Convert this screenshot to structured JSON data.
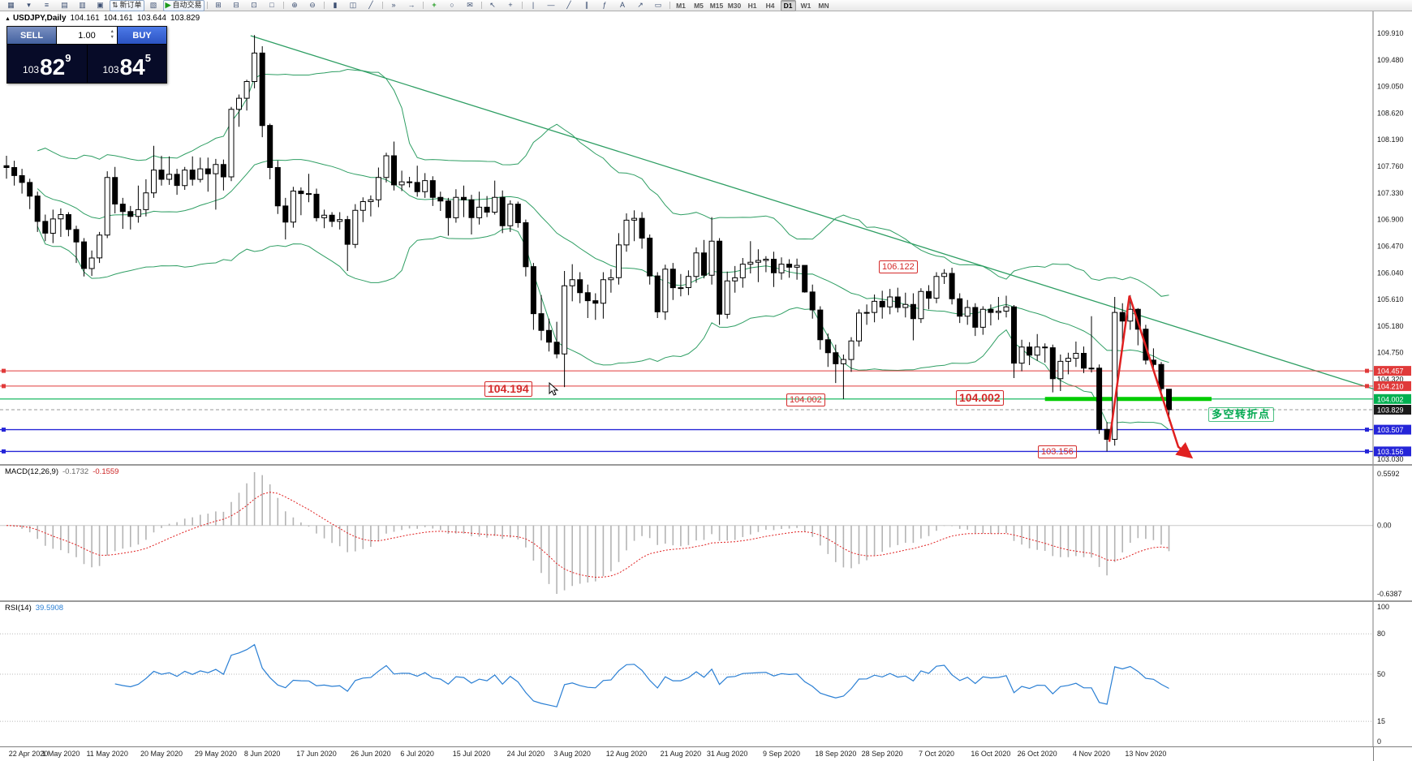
{
  "toolbar": {
    "items": [
      {
        "name": "new-chart-icon"
      },
      {
        "name": "chart-dropdown-icon"
      },
      {
        "name": "market-watch-icon"
      },
      {
        "name": "data-window-icon"
      },
      {
        "name": "navigator-icon"
      },
      {
        "name": "terminal-icon"
      },
      {
        "name": "new-order-button",
        "label": "新订单",
        "icon": "order-icon"
      },
      {
        "name": "strategy-tester-icon"
      },
      {
        "name": "autotrading-button",
        "label": "自动交易",
        "icon": "play-icon"
      },
      {
        "sep": true
      },
      {
        "name": "tile-windows-icon"
      },
      {
        "name": "cascade-windows-icon"
      },
      {
        "name": "arrange-icon"
      },
      {
        "name": "maximize-icon"
      },
      {
        "sep": true
      },
      {
        "name": "zoom-in-icon"
      },
      {
        "name": "zoom-out-icon"
      },
      {
        "sep": true
      },
      {
        "name": "bar-chart-icon"
      },
      {
        "name": "candlestick-chart-icon"
      },
      {
        "name": "line-chart-icon"
      },
      {
        "sep": true
      },
      {
        "name": "auto-scroll-icon"
      },
      {
        "name": "chart-shift-icon"
      },
      {
        "sep": true
      },
      {
        "name": "indicators-icon"
      },
      {
        "name": "periods-icon"
      },
      {
        "name": "templates-icon"
      },
      {
        "sep": true
      },
      {
        "name": "cursor-icon"
      },
      {
        "name": "crosshair-icon"
      },
      {
        "sep": true
      },
      {
        "name": "vertical-line-icon"
      },
      {
        "name": "horizontal-line-icon"
      },
      {
        "name": "trendline-icon"
      },
      {
        "name": "channel-icon"
      },
      {
        "name": "fibonacci-icon"
      },
      {
        "name": "text-icon"
      },
      {
        "name": "arrow-label-icon"
      },
      {
        "name": "shapes-icon"
      },
      {
        "sep": true
      }
    ],
    "timeframes": [
      "M1",
      "M5",
      "M15",
      "M30",
      "H1",
      "H4",
      "D1",
      "W1",
      "MN"
    ],
    "active_timeframe": "D1"
  },
  "chart_title": {
    "symbol": "USDJPY,Daily",
    "open": "104.161",
    "high": "104.161",
    "low": "103.644",
    "close": "103.829"
  },
  "trade_panel": {
    "sell_label": "SELL",
    "buy_label": "BUY",
    "volume": "1.00",
    "bid_small": "103",
    "bid_big": "82",
    "bid_sup": "9",
    "ask_small": "103",
    "ask_big": "84",
    "ask_sup": "5"
  },
  "price_axis": {
    "ticks": [
      "109.910",
      "109.480",
      "109.050",
      "108.620",
      "108.190",
      "107.760",
      "107.330",
      "106.900",
      "106.470",
      "106.040",
      "105.610",
      "105.180",
      "104.750",
      "104.320",
      "103.030"
    ],
    "badges": [
      {
        "label": "104.457",
        "color": "#e03a3a"
      },
      {
        "label": "104.210",
        "color": "#e03a3a"
      },
      {
        "label": "104.002",
        "color": "#00b050"
      },
      {
        "label": "103.829",
        "color": "#1a1a1a"
      },
      {
        "label": "103.507",
        "color": "#2525d8"
      },
      {
        "label": "103.156",
        "color": "#2525d8"
      }
    ]
  },
  "levels": [
    {
      "name": "resistance-line-104457",
      "price": 104.457,
      "color": "#e03a3a",
      "width": 1,
      "marker": true
    },
    {
      "name": "resistance-line-104210",
      "price": 104.21,
      "color": "#e03a3a",
      "width": 1,
      "marker": true
    },
    {
      "name": "support-line-104002",
      "price": 104.002,
      "color": "#00b050",
      "width": 1.2,
      "marker": false
    },
    {
      "name": "bid-price-line",
      "price": 103.829,
      "color": "#9a9a9a",
      "width": 1,
      "dash": true,
      "marker": false
    },
    {
      "name": "support-line-103507",
      "price": 103.507,
      "color": "#2525d8",
      "width": 1.4,
      "marker": true
    },
    {
      "name": "support-line-103156",
      "price": 103.156,
      "color": "#2525d8",
      "width": 1.4,
      "marker": true
    }
  ],
  "annotations": {
    "peak_level": "106.122",
    "july_low": "104.194",
    "sep_low": "104.002",
    "key_level": "104.002",
    "nov_low": "103.156",
    "pivot_text": "多空转折点"
  },
  "macd": {
    "label": "MACD(12,26,9)",
    "value1": "-0.1732",
    "value2": "-0.1559",
    "scale_max": "0.5592",
    "scale_zero": "0.00",
    "scale_min": "-0.6387",
    "fast": 12,
    "slow": 26,
    "signal": 9
  },
  "rsi": {
    "label": "RSI(14)",
    "value": "39.5908",
    "period": 14,
    "scale_labels": [
      "100",
      "80",
      "50",
      "15",
      "0"
    ],
    "level_lines": [
      80,
      50,
      15
    ]
  },
  "chart_data": {
    "type": "candlestick",
    "symbol": "USDJPY",
    "timeframe": "Daily",
    "bollinger": {
      "period": 20,
      "deviation": 2
    },
    "trendline": {
      "i1": 31.5,
      "p1": 109.87,
      "i2": 177,
      "p2": 104.14
    },
    "green_segment": {
      "price": 104.002,
      "from_i": 134,
      "to_i": 155.5
    },
    "arrow_points": [
      [
        142.3,
        103.31
      ],
      [
        144.9,
        105.67
      ],
      [
        151.2,
        103.23
      ],
      [
        152.9,
        103.06
      ]
    ],
    "x_labels": [
      {
        "i": 0,
        "label": "22 Apr 2020"
      },
      {
        "i": 7,
        "label": "1 May 2020"
      },
      {
        "i": 13,
        "label": "11 May 2020"
      },
      {
        "i": 20,
        "label": "20 May 2020"
      },
      {
        "i": 27,
        "label": "29 May 2020"
      },
      {
        "i": 33,
        "label": "8 Jun 2020"
      },
      {
        "i": 40,
        "label": "17 Jun 2020"
      },
      {
        "i": 47,
        "label": "26 Jun 2020"
      },
      {
        "i": 53,
        "label": "6 Jul 2020"
      },
      {
        "i": 60,
        "label": "15 Jul 2020"
      },
      {
        "i": 67,
        "label": "24 Jul 2020"
      },
      {
        "i": 73,
        "label": "3 Aug 2020"
      },
      {
        "i": 80,
        "label": "12 Aug 2020"
      },
      {
        "i": 87,
        "label": "21 Aug 2020"
      },
      {
        "i": 93,
        "label": "31 Aug 2020"
      },
      {
        "i": 100,
        "label": "9 Sep 2020"
      },
      {
        "i": 107,
        "label": "18 Sep 2020"
      },
      {
        "i": 113,
        "label": "28 Sep 2020"
      },
      {
        "i": 120,
        "label": "7 Oct 2020"
      },
      {
        "i": 127,
        "label": "16 Oct 2020"
      },
      {
        "i": 133,
        "label": "26 Oct 2020"
      },
      {
        "i": 140,
        "label": "4 Nov 2020"
      },
      {
        "i": 147,
        "label": "13 Nov 2020"
      }
    ],
    "candles": [
      [
        107.77,
        107.93,
        107.56,
        107.74
      ],
      [
        107.74,
        107.85,
        107.45,
        107.61
      ],
      [
        107.61,
        107.72,
        107.32,
        107.5
      ],
      [
        107.5,
        107.56,
        107.07,
        107.28
      ],
      [
        107.28,
        107.35,
        106.7,
        106.87
      ],
      [
        106.87,
        106.98,
        106.55,
        106.68
      ],
      [
        106.68,
        107.06,
        106.52,
        106.91
      ],
      [
        106.91,
        107.08,
        106.62,
        106.98
      ],
      [
        106.98,
        107.02,
        106.63,
        106.74
      ],
      [
        106.74,
        106.8,
        106.2,
        106.54
      ],
      [
        106.54,
        106.6,
        105.98,
        106.11
      ],
      [
        106.11,
        106.4,
        105.99,
        106.28
      ],
      [
        106.28,
        106.7,
        106.2,
        106.65
      ],
      [
        106.65,
        107.68,
        106.6,
        107.58
      ],
      [
        107.58,
        107.75,
        107.0,
        107.15
      ],
      [
        107.15,
        107.25,
        106.75,
        107.03
      ],
      [
        107.03,
        107.12,
        106.74,
        106.95
      ],
      [
        106.95,
        107.45,
        106.85,
        107.06
      ],
      [
        107.06,
        107.55,
        106.95,
        107.33
      ],
      [
        107.33,
        108.09,
        107.25,
        107.7
      ],
      [
        107.7,
        107.93,
        107.45,
        107.55
      ],
      [
        107.55,
        107.92,
        107.46,
        107.63
      ],
      [
        107.63,
        107.72,
        107.3,
        107.45
      ],
      [
        107.45,
        107.75,
        107.38,
        107.7
      ],
      [
        107.7,
        107.92,
        107.45,
        107.55
      ],
      [
        107.55,
        107.9,
        107.5,
        107.72
      ],
      [
        107.72,
        107.9,
        107.35,
        107.64
      ],
      [
        107.64,
        107.88,
        107.06,
        107.79
      ],
      [
        107.79,
        107.87,
        107.37,
        107.59
      ],
      [
        107.59,
        108.72,
        107.52,
        108.68
      ],
      [
        108.68,
        108.92,
        108.4,
        108.86
      ],
      [
        108.86,
        109.16,
        108.66,
        109.13
      ],
      [
        109.13,
        109.88,
        109.02,
        109.59
      ],
      [
        109.59,
        109.7,
        108.23,
        108.42
      ],
      [
        108.42,
        108.45,
        107.55,
        107.74
      ],
      [
        107.74,
        107.85,
        106.99,
        107.12
      ],
      [
        107.12,
        107.25,
        106.58,
        106.86
      ],
      [
        106.86,
        107.43,
        106.77,
        107.36
      ],
      [
        107.36,
        107.42,
        106.97,
        107.32
      ],
      [
        107.32,
        107.64,
        107.18,
        107.31
      ],
      [
        107.31,
        107.4,
        106.87,
        106.93
      ],
      [
        106.93,
        107.06,
        106.76,
        106.97
      ],
      [
        106.97,
        107.02,
        106.78,
        106.87
      ],
      [
        106.87,
        107.02,
        106.74,
        106.9
      ],
      [
        106.9,
        106.96,
        106.07,
        106.5
      ],
      [
        106.5,
        107.15,
        106.44,
        107.05
      ],
      [
        107.05,
        107.26,
        106.86,
        107.19
      ],
      [
        107.19,
        107.29,
        106.95,
        107.22
      ],
      [
        107.22,
        107.74,
        107.1,
        107.58
      ],
      [
        107.58,
        107.98,
        107.5,
        107.93
      ],
      [
        107.93,
        108.16,
        107.37,
        107.46
      ],
      [
        107.46,
        107.69,
        107.36,
        107.51
      ],
      [
        107.51,
        107.59,
        107.42,
        107.5
      ],
      [
        107.5,
        107.77,
        107.27,
        107.35
      ],
      [
        107.35,
        107.65,
        107.25,
        107.53
      ],
      [
        107.53,
        107.6,
        107.12,
        107.26
      ],
      [
        107.26,
        107.35,
        107.04,
        107.2
      ],
      [
        107.2,
        107.25,
        106.64,
        106.93
      ],
      [
        106.93,
        107.39,
        106.85,
        107.26
      ],
      [
        107.26,
        107.45,
        106.94,
        107.22
      ],
      [
        107.22,
        107.3,
        106.66,
        106.93
      ],
      [
        106.93,
        107.35,
        106.82,
        107.1
      ],
      [
        107.1,
        107.28,
        106.94,
        107.02
      ],
      [
        107.02,
        107.53,
        106.98,
        107.26
      ],
      [
        107.26,
        107.37,
        106.68,
        106.8
      ],
      [
        106.8,
        107.21,
        106.7,
        107.15
      ],
      [
        107.15,
        107.19,
        106.77,
        106.85
      ],
      [
        106.85,
        106.9,
        105.98,
        106.14
      ],
      [
        106.14,
        106.2,
        105.12,
        105.38
      ],
      [
        105.38,
        105.68,
        104.95,
        105.11
      ],
      [
        105.11,
        105.3,
        104.77,
        104.92
      ],
      [
        104.92,
        105.25,
        104.66,
        104.73
      ],
      [
        104.73,
        106.07,
        104.194,
        105.83
      ],
      [
        105.83,
        106.18,
        105.58,
        105.93
      ],
      [
        105.93,
        106.05,
        105.55,
        105.72
      ],
      [
        105.72,
        105.85,
        105.31,
        105.59
      ],
      [
        105.59,
        105.71,
        105.28,
        105.55
      ],
      [
        105.55,
        106.05,
        105.3,
        105.93
      ],
      [
        105.93,
        106.1,
        105.72,
        105.96
      ],
      [
        105.96,
        106.68,
        105.85,
        106.49
      ],
      [
        106.49,
        107.0,
        106.38,
        106.89
      ],
      [
        106.89,
        107.05,
        106.55,
        106.92
      ],
      [
        106.92,
        107.02,
        106.43,
        106.6
      ],
      [
        106.6,
        106.66,
        105.85,
        105.99
      ],
      [
        105.99,
        106.05,
        105.31,
        105.41
      ],
      [
        105.41,
        106.17,
        105.28,
        106.1
      ],
      [
        106.1,
        106.2,
        105.6,
        105.8
      ],
      [
        105.8,
        106.02,
        105.66,
        105.8
      ],
      [
        105.8,
        106.08,
        105.68,
        105.98
      ],
      [
        105.98,
        106.45,
        105.88,
        106.36
      ],
      [
        106.36,
        106.57,
        105.95,
        106.0
      ],
      [
        106.0,
        106.94,
        105.85,
        106.55
      ],
      [
        106.55,
        106.6,
        105.2,
        105.37
      ],
      [
        105.37,
        106.06,
        105.3,
        105.91
      ],
      [
        105.91,
        106.15,
        105.72,
        105.96
      ],
      [
        105.96,
        106.28,
        105.8,
        106.18
      ],
      [
        106.18,
        106.55,
        106.03,
        106.21
      ],
      [
        106.21,
        106.42,
        105.89,
        106.24
      ],
      [
        106.24,
        106.31,
        106.05,
        106.26
      ],
      [
        106.26,
        106.38,
        105.81,
        106.04
      ],
      [
        106.04,
        106.29,
        105.93,
        106.18
      ],
      [
        106.18,
        106.26,
        105.96,
        106.13
      ],
      [
        106.13,
        106.27,
        105.93,
        106.16
      ],
      [
        106.16,
        106.16,
        105.72,
        105.73
      ],
      [
        105.73,
        105.85,
        105.3,
        105.44
      ],
      [
        105.44,
        105.5,
        104.8,
        104.96
      ],
      [
        104.96,
        105.06,
        104.52,
        104.75
      ],
      [
        104.75,
        104.88,
        104.26,
        104.57
      ],
      [
        104.57,
        104.72,
        104.002,
        104.64
      ],
      [
        104.64,
        105.0,
        104.44,
        104.94
      ],
      [
        104.94,
        105.45,
        104.85,
        105.39
      ],
      [
        105.39,
        105.53,
        105.2,
        105.4
      ],
      [
        105.4,
        105.69,
        105.24,
        105.58
      ],
      [
        105.58,
        105.75,
        105.3,
        105.49
      ],
      [
        105.49,
        105.78,
        105.37,
        105.65
      ],
      [
        105.65,
        105.8,
        105.4,
        105.48
      ],
      [
        105.48,
        105.72,
        105.32,
        105.53
      ],
      [
        105.53,
        105.71,
        104.95,
        105.3
      ],
      [
        105.3,
        105.79,
        105.23,
        105.74
      ],
      [
        105.74,
        105.84,
        105.45,
        105.63
      ],
      [
        105.63,
        106.05,
        105.55,
        105.98
      ],
      [
        105.98,
        106.1,
        105.86,
        106.03
      ],
      [
        106.03,
        106.122,
        105.53,
        105.62
      ],
      [
        105.62,
        105.71,
        105.23,
        105.34
      ],
      [
        105.34,
        105.6,
        105.2,
        105.48
      ],
      [
        105.48,
        105.55,
        105.02,
        105.16
      ],
      [
        105.16,
        105.5,
        105.04,
        105.45
      ],
      [
        105.45,
        105.53,
        105.19,
        105.4
      ],
      [
        105.4,
        105.65,
        105.28,
        105.42
      ],
      [
        105.42,
        105.67,
        105.32,
        105.49
      ],
      [
        105.49,
        105.52,
        104.34,
        104.58
      ],
      [
        104.58,
        104.96,
        104.45,
        104.84
      ],
      [
        104.84,
        104.92,
        104.55,
        104.71
      ],
      [
        104.71,
        105.05,
        104.62,
        104.84
      ],
      [
        104.84,
        104.9,
        104.59,
        104.83
      ],
      [
        104.83,
        104.88,
        104.11,
        104.33
      ],
      [
        104.33,
        104.72,
        104.13,
        104.61
      ],
      [
        104.61,
        104.75,
        104.4,
        104.66
      ],
      [
        104.66,
        104.93,
        104.52,
        104.74
      ],
      [
        104.74,
        104.85,
        104.42,
        104.5
      ],
      [
        104.5,
        105.34,
        104.43,
        104.5
      ],
      [
        104.5,
        104.56,
        103.44,
        103.51
      ],
      [
        103.51,
        103.63,
        103.156,
        103.35
      ],
      [
        103.35,
        105.65,
        103.25,
        105.4
      ],
      [
        105.4,
        105.55,
        104.92,
        105.26
      ],
      [
        105.26,
        105.68,
        105.12,
        105.45
      ],
      [
        105.45,
        105.47,
        104.87,
        105.13
      ],
      [
        105.13,
        105.2,
        104.56,
        104.63
      ],
      [
        104.63,
        104.82,
        104.45,
        104.56
      ],
      [
        104.56,
        104.6,
        104.02,
        104.17
      ],
      [
        104.161,
        104.161,
        103.644,
        103.829
      ]
    ]
  }
}
